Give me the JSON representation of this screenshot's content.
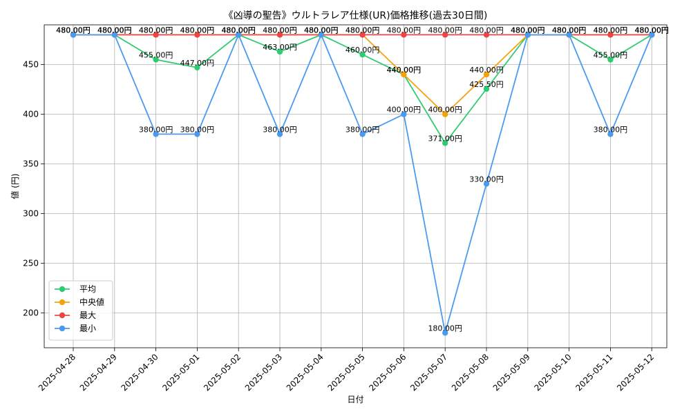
{
  "chart_data": {
    "type": "line",
    "title": "《凶導の聖告》ウルトラレア仕様(UR)価格推移(過去30日間)",
    "xlabel": "日付",
    "ylabel": "値 (円)",
    "ylim": [
      165,
      490
    ],
    "yticks": [
      200,
      250,
      300,
      350,
      400,
      450
    ],
    "grid": true,
    "legend_position": "lower-left",
    "value_suffix": "円",
    "categories": [
      "2025-04-28",
      "2025-04-29",
      "2025-04-30",
      "2025-05-01",
      "2025-05-02",
      "2025-05-03",
      "2025-05-04",
      "2025-05-05",
      "2025-05-06",
      "2025-05-07",
      "2025-05-08",
      "2025-05-09",
      "2025-05-10",
      "2025-05-11",
      "2025-05-12"
    ],
    "series": [
      {
        "name": "平均",
        "color": "#2ecc71",
        "values": [
          480,
          480,
          455,
          447,
          480,
          463,
          480,
          460,
          440,
          371,
          425.5,
          480,
          480,
          455,
          480
        ]
      },
      {
        "name": "中央値",
        "color": "#f5a30c",
        "values": [
          480,
          480,
          480,
          480,
          480,
          480,
          480,
          480,
          440,
          400,
          440,
          480,
          480,
          480,
          480
        ]
      },
      {
        "name": "最大",
        "color": "#ef4444",
        "values": [
          480,
          480,
          480,
          480,
          480,
          480,
          480,
          480,
          480,
          480,
          480,
          480,
          480,
          480,
          480
        ]
      },
      {
        "name": "最小",
        "color": "#4a9af0",
        "values": [
          480,
          480,
          380,
          380,
          480,
          380,
          480,
          380,
          400,
          180,
          330,
          480,
          480,
          380,
          480
        ]
      }
    ]
  }
}
